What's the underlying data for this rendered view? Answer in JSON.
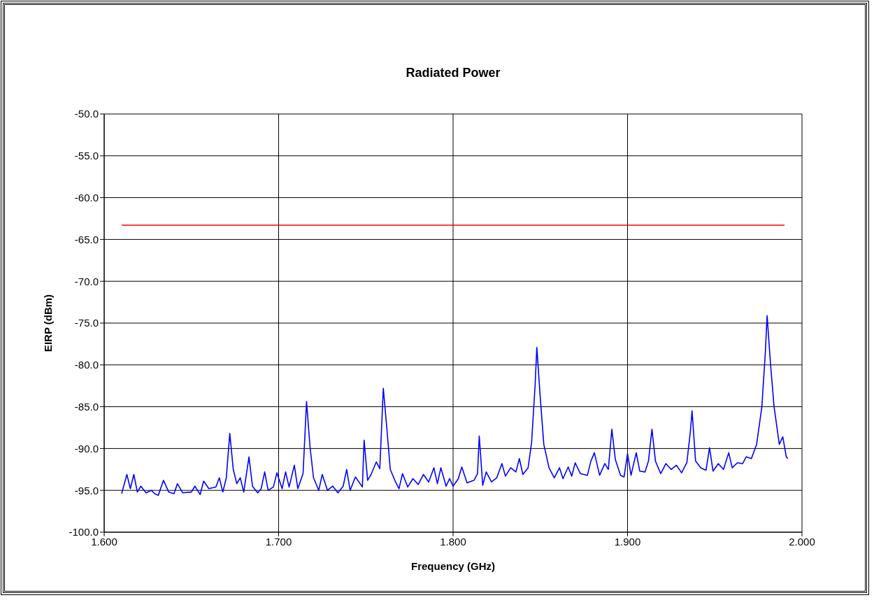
{
  "chart_data": {
    "type": "line",
    "title": "Radiated Power",
    "xlabel": "Frequency (GHz)",
    "ylabel": "EIRP (dBm)",
    "xlim": [
      1.6,
      2.0
    ],
    "xticks": [
      {
        "value": 1.6,
        "label": "1.600"
      },
      {
        "value": 1.7,
        "label": "1.700"
      },
      {
        "value": 1.8,
        "label": "1.800"
      },
      {
        "value": 1.9,
        "label": "1.900"
      },
      {
        "value": 2.0,
        "label": "2.000"
      }
    ],
    "ylim": [
      -100,
      -50
    ],
    "yticks": [
      {
        "value": -100,
        "label": "-100.0"
      },
      {
        "value": -95,
        "label": "-95.0"
      },
      {
        "value": -90,
        "label": "-90.0"
      },
      {
        "value": -85,
        "label": "-85.0"
      },
      {
        "value": -80,
        "label": "-80.0"
      },
      {
        "value": -75,
        "label": "-75.0"
      },
      {
        "value": -70,
        "label": "-70.0"
      },
      {
        "value": -65,
        "label": "-65.0"
      },
      {
        "value": -60,
        "label": "-60.0"
      },
      {
        "value": -55,
        "label": "-55.0"
      },
      {
        "value": -50,
        "label": "-50.0"
      }
    ],
    "grid": true,
    "marker": "none",
    "line_style": "solid",
    "series": [
      {
        "color": "#ff0000",
        "x": [
          1.61,
          1.99
        ],
        "values": [
          -63.3,
          -63.3
        ]
      },
      {
        "color": "#0000ff",
        "x": [
          1.61,
          1.613,
          1.615,
          1.617,
          1.619,
          1.621,
          1.624,
          1.627,
          1.629,
          1.631,
          1.634,
          1.637,
          1.64,
          1.642,
          1.645,
          1.65,
          1.652,
          1.655,
          1.657,
          1.66,
          1.664,
          1.666,
          1.668,
          1.67,
          1.672,
          1.674,
          1.676,
          1.678,
          1.68,
          1.683,
          1.685,
          1.688,
          1.69,
          1.692,
          1.694,
          1.697,
          1.699,
          1.702,
          1.704,
          1.706,
          1.709,
          1.711,
          1.714,
          1.716,
          1.718,
          1.72,
          1.723,
          1.725,
          1.728,
          1.731,
          1.734,
          1.737,
          1.739,
          1.741,
          1.744,
          1.748,
          1.749,
          1.751,
          1.753,
          1.756,
          1.758,
          1.76,
          1.762,
          1.764,
          1.767,
          1.769,
          1.771,
          1.774,
          1.777,
          1.78,
          1.783,
          1.786,
          1.789,
          1.791,
          1.793,
          1.796,
          1.798,
          1.8,
          1.803,
          1.805,
          1.808,
          1.812,
          1.814,
          1.815,
          1.817,
          1.819,
          1.822,
          1.825,
          1.828,
          1.83,
          1.833,
          1.836,
          1.838,
          1.84,
          1.843,
          1.845,
          1.847,
          1.848,
          1.85,
          1.852,
          1.855,
          1.858,
          1.861,
          1.863,
          1.866,
          1.868,
          1.87,
          1.873,
          1.877,
          1.879,
          1.881,
          1.884,
          1.887,
          1.889,
          1.891,
          1.893,
          1.896,
          1.898,
          1.9,
          1.902,
          1.905,
          1.907,
          1.91,
          1.912,
          1.914,
          1.916,
          1.919,
          1.922,
          1.925,
          1.928,
          1.931,
          1.934,
          1.936,
          1.937,
          1.939,
          1.942,
          1.945,
          1.947,
          1.949,
          1.952,
          1.955,
          1.958,
          1.96,
          1.963,
          1.966,
          1.968,
          1.971,
          1.974,
          1.977,
          1.979,
          1.98,
          1.982,
          1.984,
          1.987,
          1.989,
          1.991,
          1.992
        ],
        "values": [
          -95.4,
          -93.1,
          -94.8,
          -93.1,
          -95.2,
          -94.5,
          -95.3,
          -95.0,
          -95.4,
          -95.6,
          -93.8,
          -95.2,
          -95.4,
          -94.2,
          -95.3,
          -95.2,
          -94.5,
          -95.5,
          -93.9,
          -94.8,
          -94.6,
          -93.5,
          -95.2,
          -93.5,
          -88.2,
          -92.5,
          -94.2,
          -93.5,
          -95.2,
          -91.0,
          -94.5,
          -95.3,
          -94.8,
          -92.8,
          -95.0,
          -94.6,
          -92.9,
          -94.8,
          -92.8,
          -94.6,
          -92.0,
          -94.8,
          -93.0,
          -84.4,
          -89.8,
          -93.5,
          -95.0,
          -93.1,
          -95.0,
          -94.5,
          -95.3,
          -94.5,
          -92.5,
          -95.0,
          -93.4,
          -94.6,
          -89.0,
          -93.8,
          -93.1,
          -91.6,
          -92.4,
          -82.8,
          -87.5,
          -92.5,
          -94.0,
          -94.8,
          -93.0,
          -94.6,
          -93.6,
          -94.3,
          -93.1,
          -94.0,
          -92.3,
          -94.2,
          -92.3,
          -94.5,
          -93.6,
          -94.5,
          -93.6,
          -92.2,
          -94.1,
          -93.8,
          -93.0,
          -88.5,
          -94.4,
          -92.8,
          -94.0,
          -93.5,
          -91.8,
          -93.3,
          -92.3,
          -92.8,
          -91.2,
          -93.1,
          -92.3,
          -89.3,
          -82.5,
          -77.9,
          -84.0,
          -89.5,
          -92.3,
          -93.5,
          -92.3,
          -93.6,
          -92.2,
          -93.3,
          -91.7,
          -93.0,
          -93.2,
          -91.5,
          -90.5,
          -93.2,
          -91.8,
          -92.5,
          -87.7,
          -91.3,
          -93.2,
          -93.4,
          -90.6,
          -93.2,
          -90.5,
          -92.7,
          -92.8,
          -91.5,
          -87.7,
          -91.5,
          -93.0,
          -91.8,
          -92.5,
          -92.0,
          -92.9,
          -91.7,
          -88.0,
          -85.5,
          -91.5,
          -92.3,
          -92.6,
          -89.9,
          -92.7,
          -91.8,
          -92.5,
          -90.5,
          -92.3,
          -91.7,
          -91.8,
          -91.0,
          -91.2,
          -89.5,
          -85.0,
          -78.5,
          -74.1,
          -80.0,
          -85.0,
          -89.5,
          -88.6,
          -91.0,
          -91.2
        ]
      }
    ]
  }
}
